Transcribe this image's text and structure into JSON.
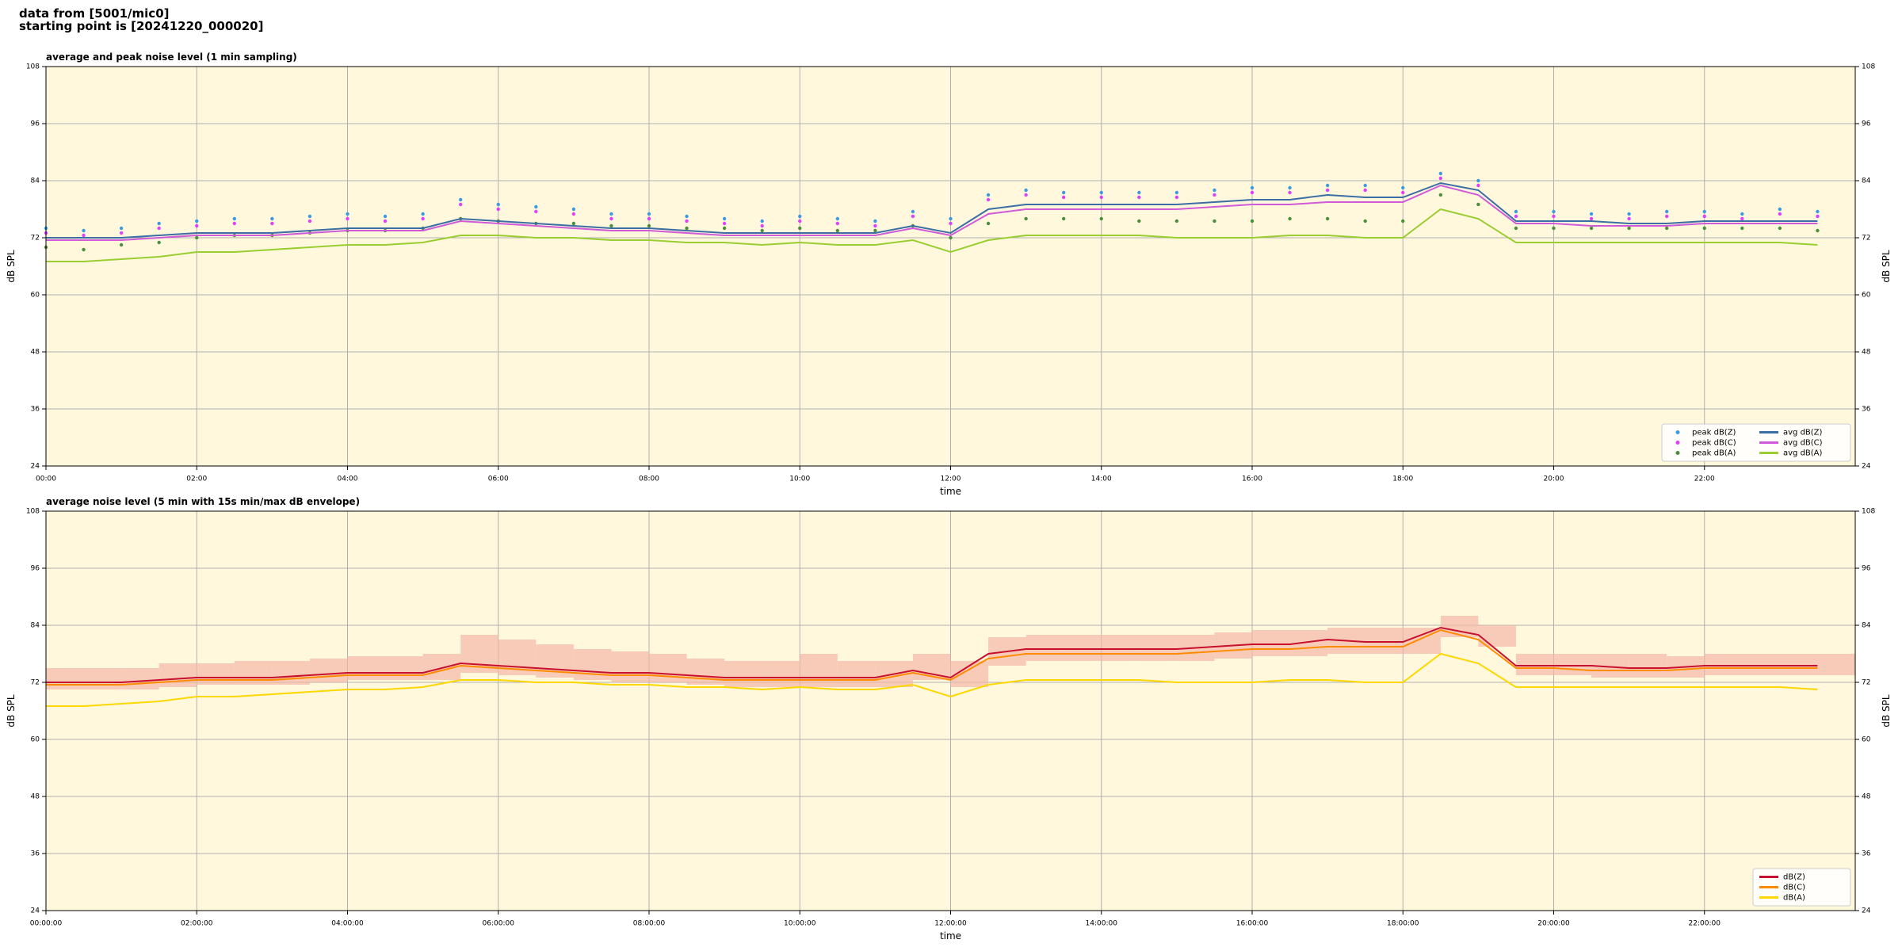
{
  "header": {
    "source": "data from [5001/mic0]",
    "start": "starting point is [20241220_000020]"
  },
  "chart_data": [
    {
      "type": "line",
      "title": "average and peak noise level (1 min sampling)",
      "xlabel": "time",
      "ylabel": "dB SPL",
      "background": "#fff8dc",
      "grid": true,
      "legend": {
        "loc": "lower right",
        "ncol": 2
      },
      "xlim": [
        0,
        24
      ],
      "ylim": [
        24,
        108
      ],
      "yticks": [
        24,
        36,
        48,
        60,
        72,
        84,
        96,
        108
      ],
      "xticks": [
        {
          "value": 0,
          "label": "00:00"
        },
        {
          "value": 2,
          "label": "02:00"
        },
        {
          "value": 4,
          "label": "04:00"
        },
        {
          "value": 6,
          "label": "06:00"
        },
        {
          "value": 8,
          "label": "08:00"
        },
        {
          "value": 10,
          "label": "10:00"
        },
        {
          "value": 12,
          "label": "12:00"
        },
        {
          "value": 14,
          "label": "14:00"
        },
        {
          "value": 16,
          "label": "16:00"
        },
        {
          "value": 18,
          "label": "18:00"
        },
        {
          "value": 20,
          "label": "20:00"
        },
        {
          "value": 22,
          "label": "22:00"
        }
      ],
      "x": [
        0,
        0.5,
        1,
        1.5,
        2,
        2.5,
        3,
        3.5,
        4,
        4.5,
        5,
        5.5,
        6,
        6.5,
        7,
        7.5,
        8,
        8.5,
        9,
        9.5,
        10,
        10.5,
        11,
        11.5,
        12,
        12.5,
        13,
        13.5,
        14,
        14.5,
        15,
        15.5,
        16,
        16.5,
        17,
        17.5,
        18,
        18.5,
        19,
        19.5,
        20,
        20.5,
        21,
        21.5,
        22,
        22.5,
        23,
        23.5
      ],
      "series": [
        {
          "name": "peak dB(Z)",
          "kind": "scatter",
          "color": "#3b9ae1",
          "values": [
            74,
            73.5,
            74,
            75,
            75.5,
            76,
            76,
            76.5,
            77,
            76.5,
            77,
            80,
            79,
            78.5,
            78,
            77,
            77,
            76.5,
            76,
            75.5,
            76.5,
            76,
            75.5,
            77.5,
            76,
            81,
            82,
            81.5,
            81.5,
            81.5,
            81.5,
            82,
            82.5,
            82.5,
            83,
            83,
            82.5,
            85.5,
            84,
            77.5,
            77.5,
            77,
            77,
            77.5,
            77.5,
            77,
            78,
            77.5
          ]
        },
        {
          "name": "peak dB(C)",
          "kind": "scatter",
          "color": "#e040fb",
          "values": [
            73,
            72.5,
            73,
            74,
            74.5,
            75,
            75,
            75.5,
            76,
            75.5,
            76,
            79,
            78,
            77.5,
            77,
            76,
            76,
            75.5,
            75,
            74.5,
            75.5,
            75,
            74.5,
            76.5,
            75,
            80,
            81,
            80.5,
            80.5,
            80.5,
            80.5,
            81,
            81.5,
            81.5,
            82,
            82,
            81.5,
            84.5,
            83,
            76.5,
            76.5,
            76,
            76,
            76.5,
            76.5,
            76,
            77,
            76.5
          ]
        },
        {
          "name": "peak dB(A)",
          "kind": "scatter",
          "color": "#4a8f3a",
          "values": [
            70,
            69.5,
            70.5,
            71,
            72,
            72.5,
            72.5,
            73,
            73.5,
            73.5,
            74,
            76,
            75.5,
            75,
            75,
            74.5,
            74.5,
            74,
            74,
            73.5,
            74,
            73.5,
            73.5,
            74.5,
            72,
            75,
            76,
            76,
            76,
            75.5,
            75.5,
            75.5,
            75.5,
            76,
            76,
            75.5,
            75.5,
            81,
            79,
            74,
            74,
            74,
            74,
            74,
            74,
            74,
            74,
            73.5
          ]
        },
        {
          "name": "avg dB(Z)",
          "kind": "line",
          "color": "#3a6ea5",
          "values": [
            72,
            72,
            72,
            72.5,
            73,
            73,
            73,
            73.5,
            74,
            74,
            74,
            76,
            75.5,
            75,
            74.5,
            74,
            74,
            73.5,
            73,
            73,
            73,
            73,
            73,
            74.5,
            73,
            78,
            79,
            79,
            79,
            79,
            79,
            79.5,
            80,
            80,
            81,
            80.5,
            80.5,
            83.5,
            82,
            75.5,
            75.5,
            75.5,
            75,
            75,
            75.5,
            75.5,
            75.5,
            75.5
          ]
        },
        {
          "name": "avg dB(C)",
          "kind": "line",
          "color": "#d05ad8",
          "values": [
            71.5,
            71.5,
            71.5,
            72,
            72.5,
            72.5,
            72.5,
            73,
            73.5,
            73.5,
            73.5,
            75.5,
            75,
            74.5,
            74,
            73.5,
            73.5,
            73,
            72.5,
            72.5,
            72.5,
            72.5,
            72.5,
            74,
            72.5,
            77,
            78,
            78,
            78,
            78,
            78,
            78.5,
            79,
            79,
            79.5,
            79.5,
            79.5,
            83,
            81,
            75,
            75,
            74.5,
            74.5,
            74.5,
            75,
            75,
            75,
            75
          ]
        },
        {
          "name": "avg dB(A)",
          "kind": "line",
          "color": "#9acd32",
          "values": [
            67,
            67,
            67.5,
            68,
            69,
            69,
            69.5,
            70,
            70.5,
            70.5,
            71,
            72.5,
            72.5,
            72,
            72,
            71.5,
            71.5,
            71,
            71,
            70.5,
            71,
            70.5,
            70.5,
            71.5,
            69,
            71.5,
            72.5,
            72.5,
            72.5,
            72.5,
            72,
            72,
            72,
            72.5,
            72.5,
            72,
            72,
            78,
            76,
            71,
            71,
            71,
            71,
            71,
            71,
            71,
            71,
            70.5
          ]
        }
      ]
    },
    {
      "type": "line",
      "title": "average noise level (5 min with 15s min/max dB envelope)",
      "xlabel": "time",
      "ylabel": "dB SPL",
      "background": "#fff8dc",
      "grid": true,
      "legend": {
        "loc": "lower right",
        "ncol": 1
      },
      "xlim": [
        0,
        24
      ],
      "ylim": [
        24,
        108
      ],
      "yticks": [
        24,
        36,
        48,
        60,
        72,
        84,
        96,
        108
      ],
      "xticks": [
        {
          "value": 0,
          "label": "00:00:00"
        },
        {
          "value": 2,
          "label": "02:00:00"
        },
        {
          "value": 4,
          "label": "04:00:00"
        },
        {
          "value": 6,
          "label": "06:00:00"
        },
        {
          "value": 8,
          "label": "08:00:00"
        },
        {
          "value": 10,
          "label": "10:00:00"
        },
        {
          "value": 12,
          "label": "12:00:00"
        },
        {
          "value": 14,
          "label": "14:00:00"
        },
        {
          "value": 16,
          "label": "16:00:00"
        },
        {
          "value": 18,
          "label": "18:00:00"
        },
        {
          "value": 20,
          "label": "20:00:00"
        },
        {
          "value": 22,
          "label": "22:00:00"
        }
      ],
      "x": [
        0,
        0.5,
        1,
        1.5,
        2,
        2.5,
        3,
        3.5,
        4,
        4.5,
        5,
        5.5,
        6,
        6.5,
        7,
        7.5,
        8,
        8.5,
        9,
        9.5,
        10,
        10.5,
        11,
        11.5,
        12,
        12.5,
        13,
        13.5,
        14,
        14.5,
        15,
        15.5,
        16,
        16.5,
        17,
        17.5,
        18,
        18.5,
        19,
        19.5,
        20,
        20.5,
        21,
        21.5,
        22,
        22.5,
        23,
        23.5
      ],
      "band": {
        "color": "#f4b8a8",
        "lower": [
          70.5,
          70.5,
          70.5,
          71,
          71.5,
          71.5,
          71.5,
          72,
          72.5,
          72.5,
          72.5,
          74,
          73.5,
          73,
          72.5,
          72,
          72,
          71.5,
          71,
          71,
          71,
          71,
          71,
          72.5,
          71,
          75.5,
          76.5,
          76.5,
          76.5,
          76.5,
          76.5,
          77,
          77.5,
          77.5,
          78,
          78,
          78,
          81.5,
          79.5,
          73.5,
          73.5,
          73,
          73,
          73,
          73.5,
          73.5,
          73.5,
          73.5
        ],
        "upper": [
          75,
          75,
          75,
          76,
          76,
          76.5,
          76.5,
          77,
          77.5,
          77.5,
          78,
          82,
          81,
          80,
          79,
          78.5,
          78,
          77,
          76.5,
          76.5,
          78,
          76.5,
          76.5,
          78,
          76.5,
          81.5,
          82,
          82,
          82,
          82,
          82,
          82.5,
          83,
          83,
          83.5,
          83.5,
          83.5,
          86,
          84,
          78,
          78,
          78,
          78,
          77.5,
          78,
          78,
          78,
          78
        ]
      },
      "series": [
        {
          "name": "dB(Z)",
          "kind": "line",
          "color": "#c8102e",
          "values": [
            72,
            72,
            72,
            72.5,
            73,
            73,
            73,
            73.5,
            74,
            74,
            74,
            76,
            75.5,
            75,
            74.5,
            74,
            74,
            73.5,
            73,
            73,
            73,
            73,
            73,
            74.5,
            73,
            78,
            79,
            79,
            79,
            79,
            79,
            79.5,
            80,
            80,
            81,
            80.5,
            80.5,
            83.5,
            82,
            75.5,
            75.5,
            75.5,
            75,
            75,
            75.5,
            75.5,
            75.5,
            75.5
          ]
        },
        {
          "name": "dB(C)",
          "kind": "line",
          "color": "#ff8c00",
          "values": [
            71.5,
            71.5,
            71.5,
            72,
            72.5,
            72.5,
            72.5,
            73,
            73.5,
            73.5,
            73.5,
            75.5,
            75,
            74.5,
            74,
            73.5,
            73.5,
            73,
            72.5,
            72.5,
            72.5,
            72.5,
            72.5,
            74,
            72.5,
            77,
            78,
            78,
            78,
            78,
            78,
            78.5,
            79,
            79,
            79.5,
            79.5,
            79.5,
            83,
            81,
            75,
            75,
            74.5,
            74.5,
            74.5,
            75,
            75,
            75,
            75
          ]
        },
        {
          "name": "dB(A)",
          "kind": "line",
          "color": "#ffd700",
          "values": [
            67,
            67,
            67.5,
            68,
            69,
            69,
            69.5,
            70,
            70.5,
            70.5,
            71,
            72.5,
            72.5,
            72,
            72,
            71.5,
            71.5,
            71,
            71,
            70.5,
            71,
            70.5,
            70.5,
            71.5,
            69,
            71.5,
            72.5,
            72.5,
            72.5,
            72.5,
            72,
            72,
            72,
            72.5,
            72.5,
            72,
            72,
            78,
            76,
            71,
            71,
            71,
            71,
            71,
            71,
            71,
            71,
            70.5
          ]
        }
      ]
    }
  ]
}
